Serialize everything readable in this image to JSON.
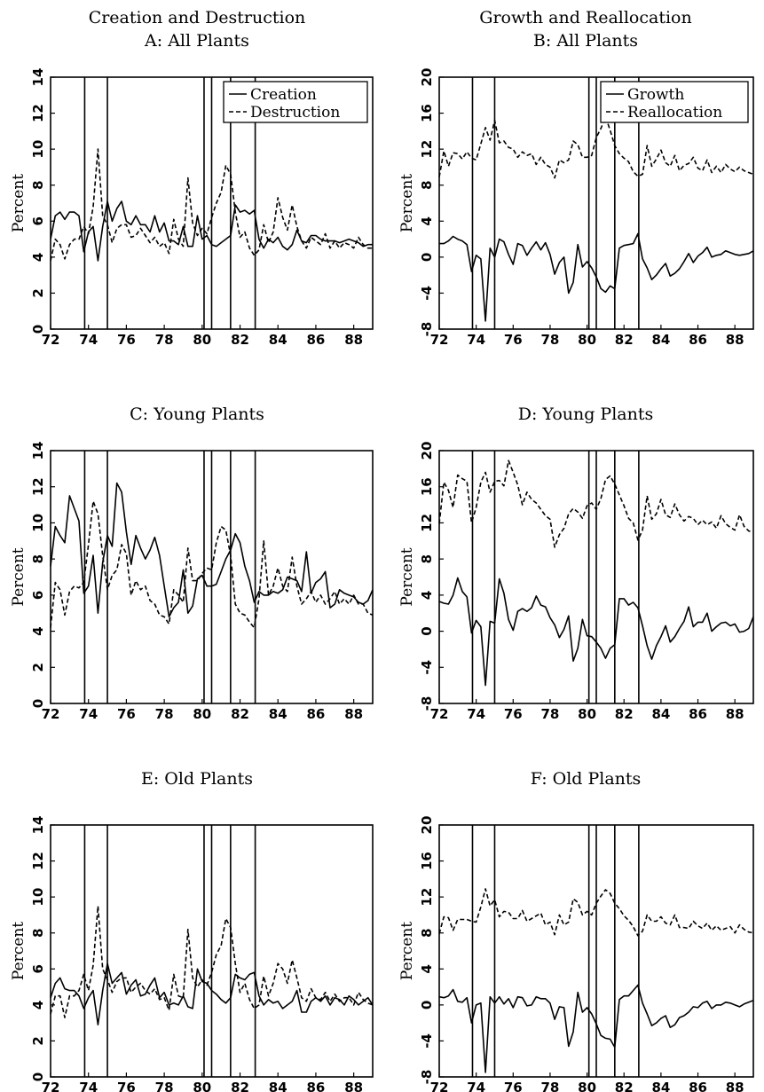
{
  "column_titles": [
    "Creation and Destruction",
    "Growth and Reallocation"
  ],
  "recession_lines": [
    73.8,
    75.0,
    80.1,
    80.5,
    81.5,
    82.8
  ],
  "chart_data": [
    {
      "type": "line",
      "title": "A: All Plants",
      "ylabel": "Percent",
      "xlim": [
        72,
        89
      ],
      "ylim": [
        0,
        14
      ],
      "xticks": [
        72,
        74,
        76,
        78,
        80,
        82,
        84,
        86,
        88
      ],
      "yticks": [
        0,
        2,
        4,
        6,
        8,
        10,
        12,
        14
      ],
      "legend": "top-right",
      "series": [
        {
          "name": "Creation",
          "style": "solid",
          "values": [
            5.0,
            6.3,
            6.5,
            6.1,
            6.5,
            6.5,
            6.3,
            4.3,
            5.4,
            5.7,
            3.8,
            5.7,
            7.1,
            6.0,
            6.7,
            7.1,
            6.0,
            5.8,
            6.3,
            5.8,
            5.8,
            5.4,
            6.3,
            5.4,
            5.9,
            4.9,
            4.9,
            4.7,
            5.7,
            4.6,
            4.6,
            6.3,
            5.0,
            5.2,
            4.7,
            4.6,
            4.8,
            5.0,
            5.2,
            6.9,
            6.5,
            6.6,
            6.4,
            6.6,
            5.0,
            4.5,
            5.0,
            4.8,
            5.1,
            4.6,
            4.4,
            4.7,
            5.5,
            4.9,
            4.8,
            5.2,
            5.2,
            5.0,
            4.9,
            4.9,
            4.9,
            4.8,
            4.9,
            5.0,
            4.9,
            4.8,
            4.6,
            4.7,
            4.7
          ]
        },
        {
          "name": "Destruction",
          "style": "dashed",
          "values": [
            3.8,
            5.0,
            4.7,
            3.9,
            4.7,
            5.0,
            5.0,
            5.7,
            5.3,
            6.8,
            10.0,
            6.3,
            5.8,
            4.8,
            5.6,
            5.8,
            5.8,
            5.1,
            5.2,
            5.6,
            5.2,
            4.8,
            5.1,
            4.6,
            4.8,
            4.2,
            6.1,
            5.0,
            4.6,
            8.4,
            5.9,
            5.2,
            5.6,
            5.3,
            6.2,
            7.0,
            7.6,
            9.1,
            8.6,
            6.5,
            5.1,
            5.4,
            4.5,
            4.1,
            4.4,
            5.8,
            4.8,
            5.4,
            7.3,
            6.2,
            5.5,
            6.9,
            5.7,
            4.9,
            4.5,
            5.1,
            4.9,
            4.7,
            5.3,
            4.5,
            4.9,
            4.5,
            4.8,
            4.7,
            4.5,
            5.1,
            4.7,
            4.5,
            4.5
          ]
        }
      ]
    },
    {
      "type": "line",
      "title": "B: All Plants",
      "ylabel": "Percent",
      "xlim": [
        72,
        89
      ],
      "ylim": [
        -8,
        20
      ],
      "xticks": [
        72,
        74,
        76,
        78,
        80,
        82,
        84,
        86,
        88
      ],
      "yticks": [
        -8,
        -4,
        0,
        4,
        8,
        12,
        16,
        20
      ],
      "legend": "top-right",
      "series": [
        {
          "name": "Growth",
          "style": "solid",
          "values": [
            1.5,
            1.5,
            1.8,
            2.3,
            2.0,
            1.8,
            1.4,
            -1.6,
            0.2,
            -0.2,
            -7.1,
            1.0,
            0.0,
            2.0,
            1.7,
            0.3,
            -0.8,
            1.5,
            1.3,
            0.2,
            1.0,
            1.7,
            0.8,
            1.6,
            0.3,
            -1.9,
            -0.6,
            0.0,
            -4.0,
            -2.8,
            1.4,
            -1.1,
            -0.5,
            -1.2,
            -2.2,
            -3.5,
            -3.9,
            -3.2,
            -3.5,
            1.0,
            1.3,
            1.4,
            1.5,
            2.6,
            -0.2,
            -1.2,
            -2.5,
            -2.0,
            -1.3,
            -0.7,
            -2.1,
            -1.8,
            -1.3,
            -0.5,
            0.4,
            -0.6,
            0.1,
            0.5,
            1.1,
            0.0,
            0.2,
            0.3,
            0.7,
            0.5,
            0.3,
            0.2,
            0.3,
            0.4,
            0.7
          ]
        },
        {
          "name": "Reallocation",
          "style": "dashed",
          "values": [
            8.9,
            11.8,
            10.1,
            11.6,
            11.5,
            10.9,
            11.7,
            11.0,
            10.8,
            12.6,
            14.4,
            13.0,
            15.2,
            12.7,
            12.9,
            12.2,
            12.0,
            11.1,
            11.7,
            11.3,
            11.5,
            10.3,
            11.1,
            10.3,
            10.0,
            8.8,
            10.8,
            10.5,
            10.8,
            12.9,
            12.5,
            11.1,
            11.1,
            11.3,
            13.3,
            14.3,
            15.6,
            14.1,
            12.4,
            11.5,
            11.0,
            10.6,
            9.5,
            9.0,
            9.2,
            12.4,
            10.1,
            10.9,
            11.9,
            10.5,
            10.1,
            11.3,
            9.6,
            10.2,
            10.4,
            11.1,
            9.9,
            9.6,
            10.8,
            9.4,
            10.1,
            9.4,
            10.3,
            9.8,
            9.5,
            10.0,
            9.6,
            9.4,
            9.2
          ]
        }
      ]
    },
    {
      "type": "line",
      "title": "C: Young Plants",
      "ylabel": "Percent",
      "xlim": [
        72,
        89
      ],
      "ylim": [
        0,
        14
      ],
      "xticks": [
        72,
        74,
        76,
        78,
        80,
        82,
        84,
        86,
        88
      ],
      "yticks": [
        0,
        2,
        4,
        6,
        8,
        10,
        12,
        14
      ],
      "legend": "none",
      "series": [
        {
          "name": "Creation",
          "style": "solid",
          "values": [
            7.6,
            9.8,
            9.3,
            8.9,
            11.5,
            10.8,
            10.1,
            6.1,
            6.5,
            8.2,
            5.0,
            7.8,
            9.3,
            8.7,
            12.2,
            11.7,
            9.5,
            7.7,
            9.3,
            8.6,
            8.0,
            8.5,
            9.2,
            8.2,
            6.5,
            4.8,
            5.3,
            5.6,
            7.4,
            5.0,
            5.4,
            6.9,
            7.1,
            6.5,
            6.5,
            6.6,
            7.3,
            8.0,
            8.5,
            9.4,
            8.9,
            7.6,
            6.8,
            5.6,
            6.2,
            6.0,
            6.0,
            6.2,
            6.1,
            6.3,
            7.0,
            6.9,
            6.8,
            6.2,
            8.4,
            6.1,
            6.7,
            6.9,
            7.3,
            5.3,
            5.5,
            6.3,
            6.1,
            6.0,
            5.9,
            5.6,
            5.5,
            5.7,
            6.3
          ]
        },
        {
          "name": "Destruction",
          "style": "dashed",
          "values": [
            4.2,
            6.7,
            6.3,
            4.9,
            6.2,
            6.5,
            6.4,
            6.7,
            8.8,
            11.2,
            10.5,
            8.2,
            6.3,
            7.1,
            7.4,
            8.8,
            8.3,
            6.0,
            6.8,
            6.3,
            6.5,
            5.7,
            5.5,
            4.9,
            4.8,
            4.4,
            6.3,
            6.0,
            5.6,
            8.6,
            6.8,
            6.8,
            7.2,
            7.5,
            7.4,
            8.9,
            9.8,
            9.6,
            8.2,
            5.5,
            5.0,
            4.9,
            4.5,
            4.2,
            5.8,
            9.0,
            6.0,
            6.5,
            7.5,
            6.5,
            6.2,
            8.1,
            6.5,
            5.5,
            5.8,
            6.2,
            5.6,
            6.0,
            5.5,
            5.8,
            6.2,
            5.5,
            5.8,
            5.5,
            6.0,
            5.5,
            5.5,
            5.0,
            4.9
          ]
        }
      ]
    },
    {
      "type": "line",
      "title": "D: Young Plants",
      "ylabel": "Percent",
      "xlim": [
        72,
        89
      ],
      "ylim": [
        -8,
        20
      ],
      "xticks": [
        72,
        74,
        76,
        78,
        80,
        82,
        84,
        86,
        88
      ],
      "yticks": [
        -8,
        -4,
        0,
        4,
        8,
        12,
        16,
        20
      ],
      "legend": "none",
      "series": [
        {
          "name": "Growth",
          "style": "solid",
          "values": [
            3.3,
            3.1,
            3.0,
            4.0,
            5.9,
            4.4,
            3.8,
            -0.2,
            1.2,
            0.5,
            -6.0,
            1.1,
            0.9,
            5.8,
            4.2,
            1.3,
            0.1,
            2.2,
            2.5,
            2.2,
            2.6,
            3.9,
            2.9,
            2.7,
            1.5,
            0.7,
            -0.7,
            0.2,
            1.7,
            -3.3,
            -1.9,
            1.3,
            -0.5,
            -0.6,
            -1.2,
            -1.9,
            -3.0,
            -1.9,
            -1.5,
            3.6,
            3.6,
            2.9,
            3.2,
            2.6,
            0.6,
            -1.6,
            -3.1,
            -1.6,
            -0.6,
            0.6,
            -1.2,
            -0.6,
            0.3,
            1.1,
            2.7,
            0.5,
            1.0,
            1.0,
            2.0,
            0.0,
            0.5,
            0.9,
            1.0,
            0.6,
            0.8,
            -0.1,
            0.0,
            0.3,
            1.6
          ]
        },
        {
          "name": "Reallocation",
          "style": "dashed",
          "values": [
            11.9,
            16.5,
            15.6,
            13.7,
            17.3,
            16.9,
            16.6,
            12.0,
            13.7,
            16.5,
            17.6,
            15.4,
            16.6,
            16.7,
            16.1,
            18.9,
            17.6,
            16.2,
            14.0,
            15.4,
            14.6,
            14.2,
            13.5,
            12.8,
            12.4,
            9.3,
            10.7,
            11.4,
            13.0,
            13.6,
            13.2,
            12.5,
            13.9,
            14.2,
            13.5,
            14.7,
            16.8,
            17.2,
            16.3,
            15.1,
            13.9,
            12.5,
            12.0,
            10.1,
            11.2,
            15.0,
            12.4,
            13.0,
            14.6,
            12.9,
            12.6,
            14.1,
            12.9,
            12.2,
            12.7,
            12.5,
            11.8,
            12.3,
            11.8,
            12.1,
            11.4,
            12.8,
            11.9,
            11.5,
            11.2,
            12.9,
            11.6,
            11.1,
            11.0
          ]
        }
      ]
    },
    {
      "type": "line",
      "title": "E: Old Plants",
      "ylabel": "Percent",
      "xlim": [
        72,
        89
      ],
      "ylim": [
        0,
        14
      ],
      "xticks": [
        72,
        74,
        76,
        78,
        80,
        82,
        84,
        86,
        88
      ],
      "yticks": [
        0,
        2,
        4,
        6,
        8,
        10,
        12,
        14
      ],
      "legend": "none",
      "series": [
        {
          "name": "Creation",
          "style": "solid",
          "values": [
            4.4,
            5.2,
            5.5,
            4.9,
            4.8,
            4.8,
            4.5,
            3.8,
            4.4,
            4.8,
            2.9,
            4.8,
            6.3,
            5.2,
            5.5,
            5.8,
            4.6,
            5.1,
            5.4,
            4.5,
            4.6,
            5.1,
            5.5,
            4.4,
            4.7,
            4.0,
            4.1,
            4.0,
            4.5,
            3.9,
            3.8,
            6.0,
            5.3,
            5.2,
            4.8,
            4.6,
            4.3,
            4.1,
            4.4,
            5.7,
            5.5,
            5.4,
            5.7,
            5.8,
            4.5,
            4.0,
            4.3,
            4.1,
            4.2,
            3.8,
            4.0,
            4.2,
            4.8,
            3.6,
            3.6,
            4.2,
            4.4,
            4.2,
            4.5,
            4.0,
            4.4,
            4.3,
            4.0,
            4.5,
            4.3,
            4.0,
            4.2,
            4.4,
            4.0
          ]
        },
        {
          "name": "Destruction",
          "style": "dashed",
          "values": [
            3.5,
            4.5,
            4.5,
            3.3,
            4.5,
            4.5,
            4.8,
            5.7,
            4.8,
            6.2,
            9.5,
            6.0,
            5.4,
            4.7,
            5.3,
            5.5,
            5.5,
            4.7,
            5.0,
            5.2,
            4.8,
            4.6,
            4.9,
            4.3,
            4.4,
            3.7,
            5.7,
            4.5,
            4.4,
            8.2,
            5.5,
            5.0,
            5.4,
            5.1,
            5.8,
            6.8,
            7.3,
            8.8,
            8.3,
            6.3,
            4.7,
            5.2,
            4.3,
            3.8,
            4.0,
            5.6,
            4.5,
            5.2,
            6.3,
            6.0,
            5.2,
            6.5,
            5.5,
            4.4,
            4.2,
            4.9,
            4.4,
            4.3,
            4.7,
            4.2,
            4.6,
            4.2,
            4.4,
            4.4,
            4.0,
            4.7,
            4.3,
            4.1,
            4.0
          ]
        }
      ]
    },
    {
      "type": "line",
      "title": "F: Old Plants",
      "ylabel": "Percent",
      "xlim": [
        72,
        89
      ],
      "ylim": [
        -8,
        20
      ],
      "xticks": [
        72,
        74,
        76,
        78,
        80,
        82,
        84,
        86,
        88
      ],
      "yticks": [
        -8,
        -4,
        0,
        4,
        8,
        12,
        16,
        20
      ],
      "legend": "none",
      "series": [
        {
          "name": "Growth",
          "style": "solid",
          "values": [
            0.9,
            0.8,
            1.0,
            1.7,
            0.4,
            0.3,
            0.8,
            -2.0,
            0.0,
            0.2,
            -7.5,
            0.9,
            0.2,
            0.9,
            0.1,
            0.7,
            -0.3,
            0.9,
            0.8,
            -0.1,
            0.0,
            0.9,
            0.7,
            0.7,
            0.2,
            -1.6,
            -0.2,
            -0.3,
            -4.6,
            -3.0,
            1.4,
            -0.8,
            -0.3,
            -1.0,
            -2.1,
            -3.4,
            -3.7,
            -3.8,
            -4.7,
            0.6,
            1.0,
            1.0,
            1.6,
            2.2,
            0.2,
            -1.0,
            -2.3,
            -2.0,
            -1.5,
            -1.2,
            -2.5,
            -2.2,
            -1.4,
            -1.2,
            -0.8,
            -0.2,
            -0.3,
            0.2,
            0.4,
            -0.4,
            0.0,
            0.0,
            0.3,
            0.2,
            0.0,
            -0.2,
            0.1,
            0.3,
            0.5
          ]
        },
        {
          "name": "Reallocation",
          "style": "dashed",
          "values": [
            7.9,
            9.8,
            9.7,
            8.3,
            9.5,
            9.5,
            9.5,
            9.3,
            9.2,
            10.9,
            12.9,
            11.0,
            11.7,
            9.8,
            10.4,
            10.3,
            9.6,
            9.6,
            10.5,
            9.3,
            9.6,
            9.9,
            10.2,
            8.9,
            9.2,
            7.8,
            10.0,
            8.9,
            9.2,
            11.8,
            11.4,
            10.0,
            10.4,
            10.0,
            11.3,
            12.1,
            12.8,
            12.4,
            11.3,
            10.7,
            9.9,
            9.4,
            8.7,
            7.7,
            8.2,
            10.0,
            9.3,
            9.3,
            9.8,
            9.1,
            8.9,
            10.0,
            8.6,
            8.6,
            8.5,
            9.3,
            8.8,
            8.5,
            9.1,
            8.3,
            8.8,
            8.3,
            8.5,
            8.7,
            8.0,
            8.9,
            8.4,
            8.1,
            8.0
          ]
        }
      ]
    }
  ]
}
